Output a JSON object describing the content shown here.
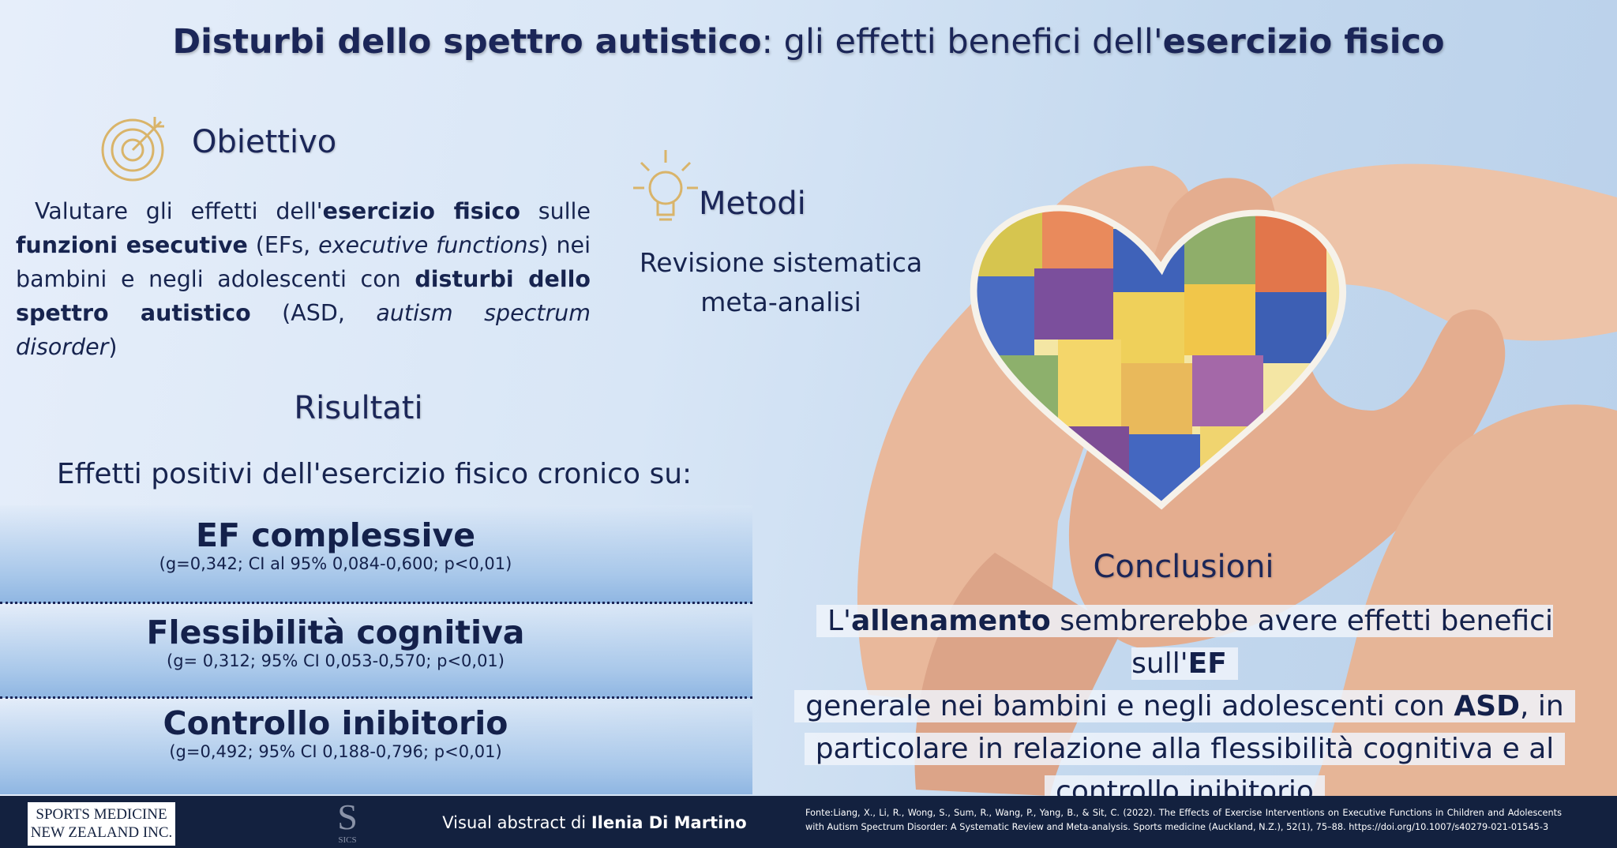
{
  "title": [
    "Disturbi dello spettro autistico",
    ": gli effetti benefici dell'",
    "esercizio fisico"
  ],
  "objective": {
    "heading": "Obiettivo",
    "text": [
      "Valutare gli effetti dell'",
      "esercizio fisico",
      " sulle ",
      "funzioni esecutive",
      " (EFs, ",
      "executive functions",
      ")  nei bambini e negli adolescenti con ",
      "disturbi dello spettro autistico",
      " (ASD, ",
      "autism spectrum disorder",
      ")"
    ]
  },
  "methods": {
    "heading": "Metodi",
    "lines": [
      "Revisione sistematica",
      "meta-analisi"
    ]
  },
  "results": {
    "heading": "Risultati",
    "intro": "Effetti positivi dell'esercizio fisico cronico su:",
    "items": [
      {
        "name": "EF complessive",
        "stats": "(g=0,342; CI al 95% 0,084-0,600; p<0,01)"
      },
      {
        "name": "Flessibilità cognitiva",
        "stats": "(g= 0,312; 95% CI 0,053-0,570; p<0,01)"
      },
      {
        "name": "Controllo inibitorio",
        "stats": "(g=0,492; 95% CI 0,188-0,796; p<0,01)"
      }
    ]
  },
  "conclusions": {
    "heading": "Conclusioni",
    "lines": [
      [
        "L'",
        "allenamento",
        " sembrerebbe avere effetti benefici sull'",
        "EF"
      ],
      [
        "generale nei bambini e negli adolescenti con ",
        "ASD",
        ", in"
      ],
      [
        "particolare in relazione alla flessibilità cognitiva e al"
      ],
      [
        "controllo inibitorio"
      ]
    ]
  },
  "footer": {
    "logo": [
      "SPORTS MEDICINE",
      "NEW ZEALAND INC."
    ],
    "sics": "SICS",
    "credit": [
      "Visual abstract di ",
      "Ilenia Di Martino"
    ],
    "source": "Fonte:Liang, X., Li, R., Wong, S., Sum, R., Wang, P., Yang, B., & Sit, C. (2022). The Effects of Exercise Interventions on Executive Functions in Children and Adolescents with Autism Spectrum Disorder: A Systematic Review and Meta-analysis. Sports medicine (Auckland, N.Z.), 52(1), 75–88. https://doi.org/10.1007/s40279-021-01545-3"
  }
}
